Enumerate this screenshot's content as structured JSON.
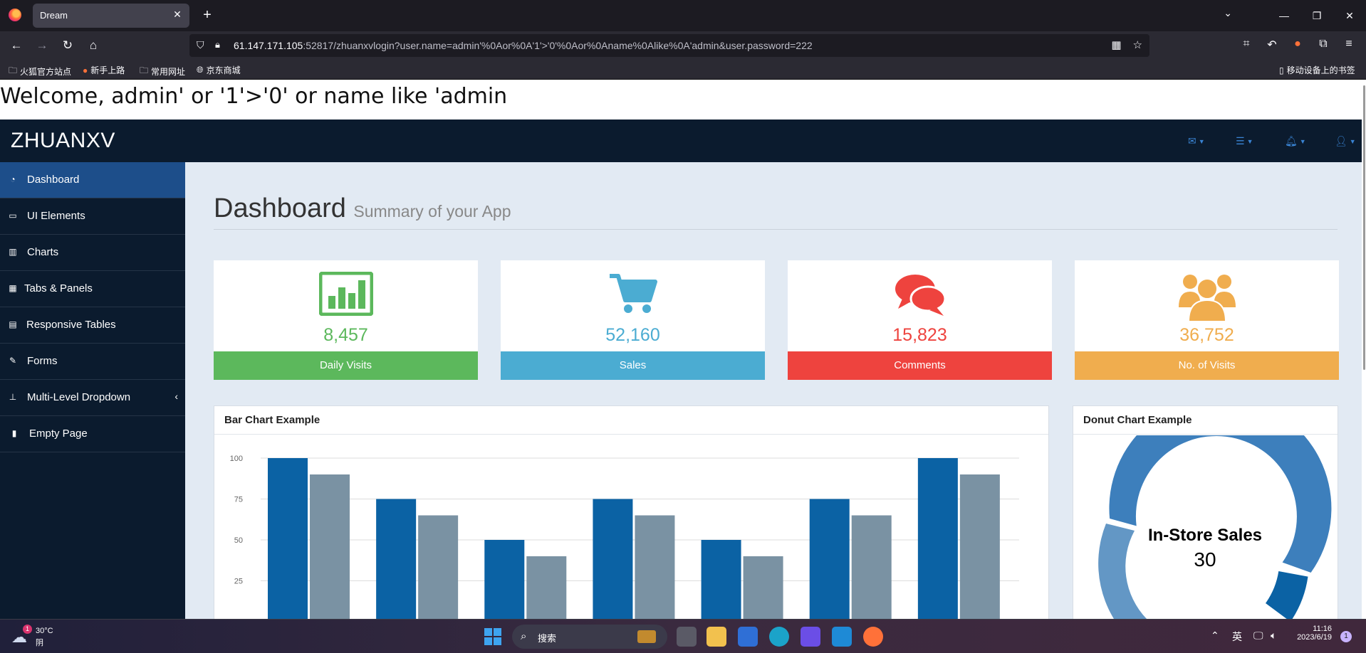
{
  "browser": {
    "tab_title": "Dream",
    "tab_close": "✕",
    "new_tab": "+",
    "url_host": "61.147.171.105",
    "url_rest": ":52817/zhuanxvlogin?user.name=admin'%0Aor%0A'1'>'0'%0Aor%0Aname%0Alike%0A'admin&user.password=222",
    "bookmarks": [
      "火狐官方站点",
      "新手上路",
      "常用网址",
      "京东商城"
    ],
    "mobile_bookmarks": "移动设备上的书签"
  },
  "page": {
    "welcome": "Welcome, admin' or '1'>'0' or name like 'admin",
    "brand": "ZHUANXV",
    "title": "Dashboard",
    "subtitle": "Summary of your App",
    "sidebar": [
      {
        "label": "Dashboard",
        "icon": "dashboard-icon",
        "active": true
      },
      {
        "label": "UI Elements",
        "icon": "desktop-icon"
      },
      {
        "label": "Charts",
        "icon": "bar-chart-icon"
      },
      {
        "label": "Tabs & Panels",
        "icon": "qrcode-icon"
      },
      {
        "label": "Responsive Tables",
        "icon": "table-icon"
      },
      {
        "label": "Forms",
        "icon": "edit-icon"
      },
      {
        "label": "Multi-Level Dropdown",
        "icon": "sitemap-icon",
        "arrow": "‹"
      },
      {
        "label": "Empty Page",
        "icon": "file-icon"
      }
    ],
    "stats": [
      {
        "value": "8,457",
        "label": "Daily Visits",
        "color": "#5cb85c",
        "icon": "bar-chart-icon"
      },
      {
        "value": "52,160",
        "label": "Sales",
        "color": "#4bacd2",
        "icon": "shopping-cart-icon"
      },
      {
        "value": "15,823",
        "label": "Comments",
        "color": "#ee433e",
        "icon": "comments-icon"
      },
      {
        "value": "36,752",
        "label": "No. of Visits",
        "color": "#f0ad4e",
        "icon": "users-icon"
      }
    ],
    "bar_panel_title": "Bar Chart Example",
    "donut_panel_title": "Donut Chart Example",
    "donut_label": "In-Store Sales",
    "donut_value": "30"
  },
  "chart_data": [
    {
      "type": "bar",
      "title": "Bar Chart Example",
      "categories": [
        "",
        "",
        "",
        "",
        "",
        "",
        ""
      ],
      "series": [
        {
          "values": [
            100,
            75,
            50,
            75,
            50,
            75,
            100
          ],
          "color": "#0b62a4"
        },
        {
          "values": [
            90,
            65,
            40,
            65,
            40,
            65,
            90
          ],
          "color": "#7a92a3"
        }
      ],
      "yticks": [
        "100",
        "75",
        "50",
        "25"
      ],
      "ylim": [
        0,
        100
      ],
      "grid": true
    },
    {
      "type": "pie",
      "title": "Donut Chart Example",
      "center_label": "In-Store Sales",
      "center_value": "30",
      "colors": [
        "#3d7fbc",
        "#0b62a4",
        "#6397c5"
      ]
    }
  ],
  "taskbar": {
    "temp": "30°C",
    "weather": "阴",
    "weather_badge": "1",
    "search": "搜索",
    "ime": "英",
    "time": "11:16",
    "date": "2023/6/19",
    "notif": "1"
  },
  "colors": {
    "header_bg": "#0b1b2e",
    "active_item": "#1d4e8a",
    "main_bg": "#e2eaf3"
  }
}
